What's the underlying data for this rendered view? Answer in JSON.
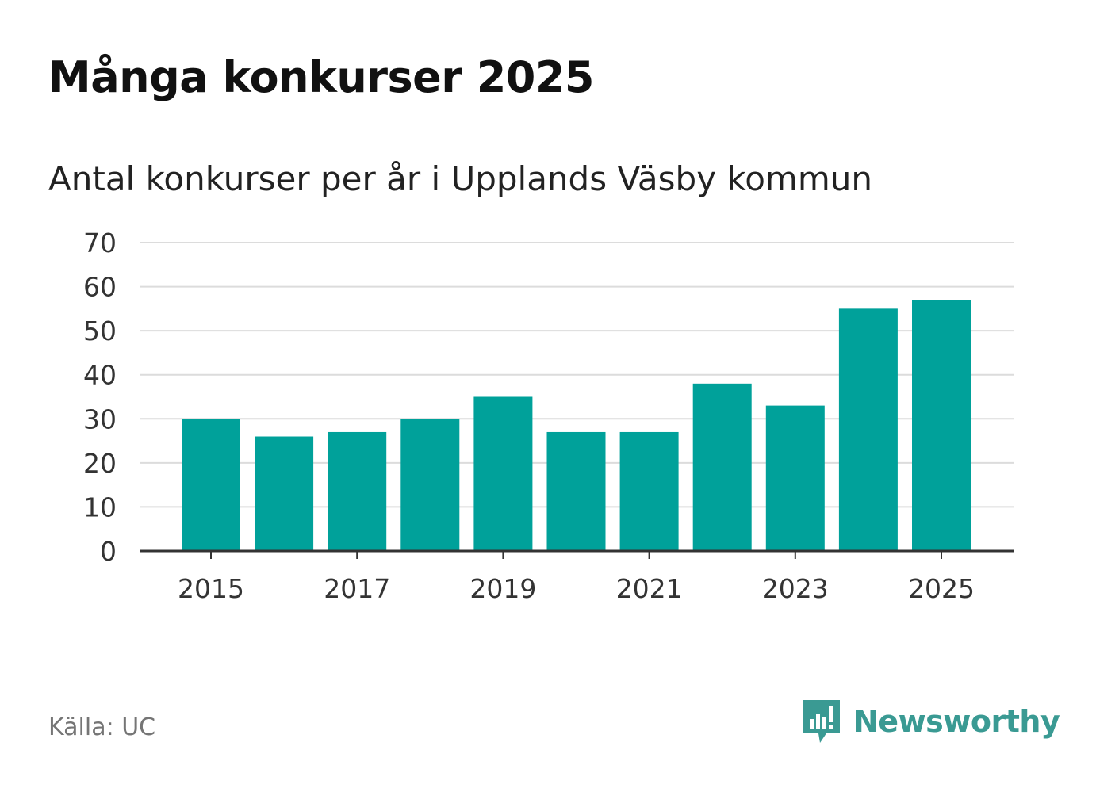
{
  "title": "Många konkurser 2025",
  "subtitle": "Antal konkurser per år i Upplands Väsby kommun",
  "source": "Källa: UC",
  "brand": "Newsworthy",
  "colors": {
    "bar": "#00a19a",
    "grid": "#dcdcdc",
    "axis": "#333333",
    "brand": "#3a9a93"
  },
  "chart_data": {
    "type": "bar",
    "categories": [
      "2015",
      "2016",
      "2017",
      "2018",
      "2019",
      "2020",
      "2021",
      "2022",
      "2023",
      "2024",
      "2025"
    ],
    "values": [
      30,
      26,
      27,
      30,
      35,
      27,
      27,
      38,
      33,
      55,
      57
    ],
    "x_tick_labels": [
      "2015",
      "2017",
      "2019",
      "2021",
      "2023",
      "2025"
    ],
    "y_ticks": [
      0,
      10,
      20,
      30,
      40,
      50,
      60,
      70
    ],
    "ylim": [
      0,
      70
    ],
    "title": "Antal konkurser per år i Upplands Väsby kommun",
    "xlabel": "",
    "ylabel": "",
    "grid": true
  }
}
